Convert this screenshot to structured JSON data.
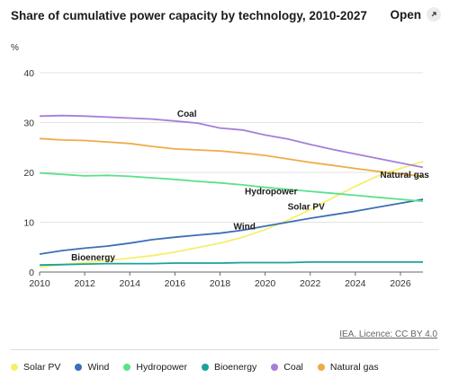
{
  "header": {
    "title": "Share of cumulative power capacity by technology, 2010-2027",
    "open_label": "Open"
  },
  "chart_data": {
    "type": "line",
    "title": "Share of cumulative power capacity by technology, 2010-2027",
    "ylabel": "%",
    "xlabel": "",
    "ylim": [
      0,
      40
    ],
    "xlim": [
      2010,
      2027
    ],
    "yticks": [
      0,
      10,
      20,
      30,
      40
    ],
    "xticks": [
      2010,
      2012,
      2014,
      2016,
      2018,
      2020,
      2022,
      2024,
      2026
    ],
    "grid": true,
    "legend_position": "bottom",
    "x": [
      2010,
      2011,
      2012,
      2013,
      2014,
      2015,
      2016,
      2017,
      2018,
      2019,
      2020,
      2021,
      2022,
      2023,
      2024,
      2025,
      2026,
      2027
    ],
    "series": [
      {
        "name": "Solar PV",
        "color": "#f5ef6e",
        "label": "Solar PV",
        "values": [
          1.0,
          1.5,
          1.9,
          2.3,
          2.8,
          3.3,
          4.0,
          4.9,
          5.8,
          7.0,
          8.5,
          10.4,
          12.5,
          14.9,
          17.2,
          19.3,
          20.8,
          22.2
        ]
      },
      {
        "name": "Wind",
        "color": "#3b6fb8",
        "label": "Wind",
        "values": [
          3.6,
          4.3,
          4.8,
          5.2,
          5.8,
          6.5,
          7.0,
          7.4,
          7.8,
          8.4,
          9.2,
          10.0,
          10.8,
          11.5,
          12.2,
          13.0,
          13.8,
          14.6
        ]
      },
      {
        "name": "Hydropower",
        "color": "#5ce08b",
        "label": "Hydropower",
        "values": [
          19.9,
          19.6,
          19.3,
          19.4,
          19.2,
          18.9,
          18.6,
          18.2,
          17.9,
          17.5,
          17.0,
          16.6,
          16.2,
          15.8,
          15.4,
          15.0,
          14.6,
          14.2
        ]
      },
      {
        "name": "Bioenergy",
        "color": "#1aa39a",
        "label": "Bioenergy",
        "values": [
          1.4,
          1.5,
          1.6,
          1.7,
          1.7,
          1.7,
          1.8,
          1.8,
          1.8,
          1.9,
          1.9,
          1.9,
          2.0,
          2.0,
          2.0,
          2.0,
          2.0,
          2.0
        ]
      },
      {
        "name": "Coal",
        "color": "#a77ed8",
        "label": "Coal",
        "values": [
          31.3,
          31.4,
          31.3,
          31.1,
          30.9,
          30.7,
          30.3,
          29.9,
          28.9,
          28.5,
          27.5,
          26.7,
          25.6,
          24.6,
          23.7,
          22.8,
          21.9,
          21.0
        ]
      },
      {
        "name": "Natural gas",
        "color": "#efab48",
        "label": "Natural gas",
        "values": [
          26.8,
          26.5,
          26.4,
          26.1,
          25.8,
          25.2,
          24.7,
          24.5,
          24.3,
          23.9,
          23.4,
          22.7,
          22.0,
          21.4,
          20.8,
          20.2,
          19.7,
          19.2
        ]
      }
    ],
    "annotations": [
      {
        "text": "Coal",
        "x": 2016.1,
        "y": 31.2
      },
      {
        "text": "Natural gas",
        "x": 2025.1,
        "y": 18.9
      },
      {
        "text": "Hydropower",
        "x": 2019.1,
        "y": 15.6
      },
      {
        "text": "Solar PV",
        "x": 2021.0,
        "y": 12.5
      },
      {
        "text": "Wind",
        "x": 2018.6,
        "y": 8.6
      },
      {
        "text": "Bioenergy",
        "x": 2011.4,
        "y": 2.3
      }
    ]
  },
  "legend": [
    {
      "label": "Solar PV",
      "color": "#f5ef6e"
    },
    {
      "label": "Wind",
      "color": "#3b6fb8"
    },
    {
      "label": "Hydropower",
      "color": "#5ce08b"
    },
    {
      "label": "Bioenergy",
      "color": "#1aa39a"
    },
    {
      "label": "Coal",
      "color": "#a77ed8"
    },
    {
      "label": "Natural gas",
      "color": "#efab48"
    }
  ],
  "footer": {
    "licence": "IEA. Licence: CC BY 4.0"
  },
  "icons": {
    "open": "external-link-icon"
  }
}
